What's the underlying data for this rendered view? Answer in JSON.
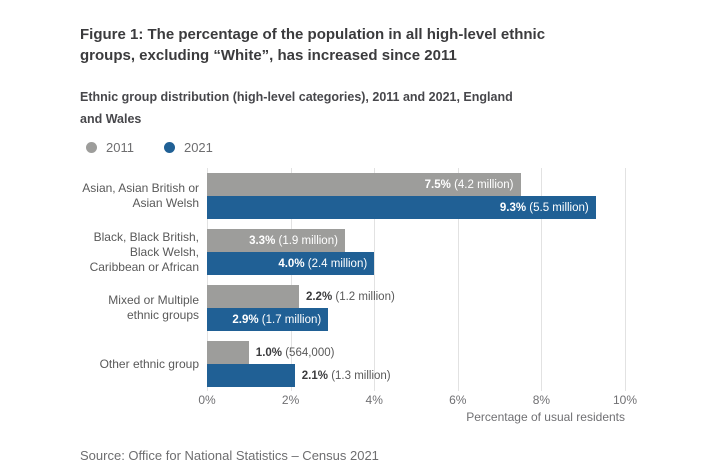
{
  "header": {
    "title_lines": [
      "Figure 1: The percentage of the population in all high-level ethnic",
      "groups, excluding “White”, has increased since 2011"
    ],
    "subtitle_lines": [
      "Ethnic group distribution (high-level categories), 2011 and 2021, England",
      "and Wales"
    ]
  },
  "legend": {
    "items": [
      {
        "label": "2011",
        "color": "#9d9d9b"
      },
      {
        "label": "2021",
        "color": "#206095"
      }
    ]
  },
  "chart_data": {
    "type": "bar",
    "orientation": "horizontal",
    "title": "Figure 1: The percentage of the population in all high-level ethnic groups, excluding “White”, has increased since 2011",
    "subtitle": "Ethnic group distribution (high-level categories), 2011 and 2021, England and Wales",
    "categories": [
      "Asian, Asian British or Asian Welsh",
      "Black, Black British, Black Welsh, Caribbean or African",
      "Mixed or Multiple ethnic groups",
      "Other ethnic group"
    ],
    "category_label_lines": [
      [
        "Asian, Asian British or",
        "Asian Welsh"
      ],
      [
        "Black, Black British,",
        "Black Welsh,",
        "Caribbean or African"
      ],
      [
        "Mixed or Multiple",
        "ethnic groups"
      ],
      [
        "Other ethnic group"
      ]
    ],
    "series": [
      {
        "name": "2011",
        "color": "#9d9d9b",
        "values": [
          7.5,
          3.3,
          2.2,
          1.0
        ],
        "label_pct": [
          "7.5%",
          "3.3%",
          "2.2%",
          "1.0%"
        ],
        "label_detail": [
          "(4.2 million)",
          "(1.9 million)",
          "(1.2 million)",
          "(564,000)"
        ],
        "label_placement": [
          "inside",
          "inside",
          "outside",
          "outside"
        ]
      },
      {
        "name": "2021",
        "color": "#206095",
        "values": [
          9.3,
          4.0,
          2.9,
          2.1
        ],
        "label_pct": [
          "9.3%",
          "4.0%",
          "2.9%",
          "2.1%"
        ],
        "label_detail": [
          "(5.5 million)",
          "(2.4 million)",
          "(1.7 million)",
          "(1.3 million)"
        ],
        "label_placement": [
          "inside",
          "inside",
          "inside",
          "outside"
        ]
      }
    ],
    "xlim": [
      0,
      10
    ],
    "x_ticks": [
      {
        "value": 0,
        "label": "0%"
      },
      {
        "value": 2,
        "label": "2%"
      },
      {
        "value": 4,
        "label": "4%"
      },
      {
        "value": 6,
        "label": "6%"
      },
      {
        "value": 8,
        "label": "8%"
      },
      {
        "value": 10,
        "label": "10%"
      }
    ],
    "xlabel": "Percentage of usual residents",
    "grid": true,
    "legend_position": "top"
  },
  "footer": {
    "source": "Source: Office for National Statistics – Census 2021"
  }
}
